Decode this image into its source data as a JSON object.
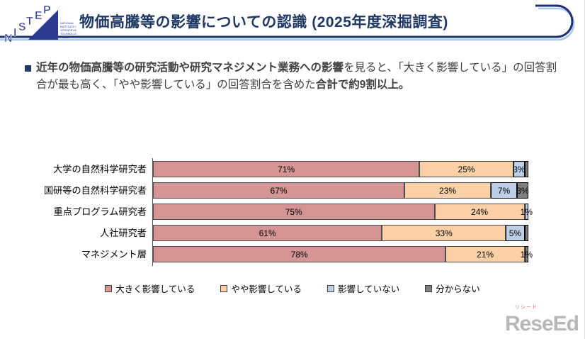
{
  "header": {
    "title": "物価高騰等の影響についての認識 (2025年度深掘調査)",
    "logo": {
      "letters": [
        "N",
        "I",
        "S",
        "T",
        "E",
        "P"
      ],
      "caption_lines": [
        "NATIONAL",
        "INSTITUTE OF",
        "SCIENCE AND",
        "TECHNOLOGY",
        "POLICY"
      ]
    },
    "accent_navy": "#1F3075",
    "accent_light_blue": "#A7CBEC"
  },
  "intro": {
    "bold_lead": "近年の物価高騰等の研究活動や研究マネジメント業務への影響",
    "normal_mid": "を見ると、「大きく影響している」の回答割合が最も高く、「やや影響している」の回答割合を含めた",
    "bold_tail": "合計で約9割以上。"
  },
  "chart_data": {
    "type": "bar",
    "orientation": "horizontal",
    "stacked": true,
    "xlim": [
      0,
      100
    ],
    "grid": false,
    "legend_position": "bottom",
    "categories": [
      "大学の自然科学研究者",
      "国研等の自然科学研究者",
      "重点プログラム研究者",
      "人社研究者",
      "マネジメント層"
    ],
    "series": [
      {
        "name": "大きく影響している",
        "color": "#D49594",
        "values": [
          71,
          67,
          75,
          61,
          78
        ],
        "labels": [
          "71%",
          "67%",
          "75%",
          "61%",
          "78%"
        ]
      },
      {
        "name": "やや影響している",
        "color": "#FBD0A6",
        "values": [
          25,
          23,
          24,
          33,
          21
        ],
        "labels": [
          "25%",
          "23%",
          "24%",
          "33%",
          "21%"
        ]
      },
      {
        "name": "影響していない",
        "color": "#BCCFE7",
        "values": [
          3,
          7,
          1,
          5,
          0
        ],
        "labels": [
          "3%",
          "7%",
          "1%",
          "5%",
          ""
        ]
      },
      {
        "name": "分からない",
        "color": "#7F7F7F",
        "values": [
          1,
          3,
          0,
          1,
          1
        ],
        "labels": [
          "",
          "3%",
          "",
          "",
          "1%"
        ]
      }
    ]
  },
  "footer_logo": {
    "ruby": "リシード",
    "text": "ReseEd"
  }
}
